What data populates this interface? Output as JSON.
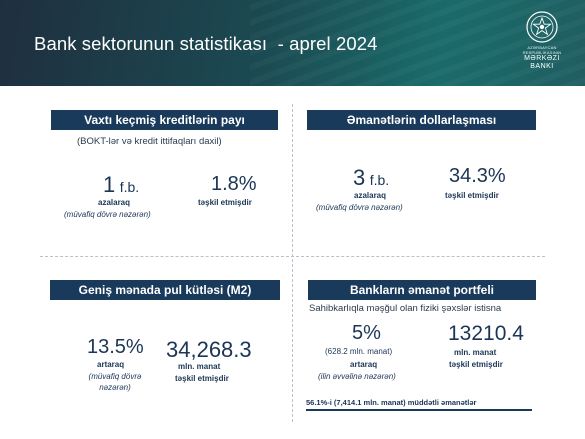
{
  "header": {
    "title": "Bank sektorunun statistikası  - aprel 2024",
    "logo": {
      "line1": "AZƏRBAYCAN RESPUBLİKASININ",
      "line2": "MƏRKƏZİ",
      "line3": "BANKI"
    }
  },
  "overdue_loans": {
    "title": "Vaxtı keçmiş kreditlərin payı",
    "subtitle": "(BOKT-lər və kredit ittifaqları daxil)",
    "change_value": "1",
    "change_unit": "f.b.",
    "change_label": "azalaraq",
    "change_note": "(müvafiq dövrə nəzərən)",
    "level_value": "1.8%",
    "level_label": "təşkil etmişdir"
  },
  "dollarization": {
    "title": "Əmanətlərin dollarlaşması",
    "change_value": "3",
    "change_unit": "f.b.",
    "change_label": "azalaraq",
    "change_note": "(müvafiq dövrə nəzərən)",
    "level_value": "34.3%",
    "level_label": "təşkil etmişdir"
  },
  "m2": {
    "title": "Geniş mənada pul kütləsi (M2)",
    "change_value": "13.5%",
    "change_label": "artaraq",
    "change_note_1": "(müvafiq dövrə",
    "change_note_2": "nəzərən)",
    "level_value": "34,268.3",
    "level_unit": "mln. manat",
    "level_label": "təşkil etmişdir"
  },
  "deposit_portfolio": {
    "title": "Bankların əmanət portfeli",
    "subtitle": "Sahibkarlıqla məşğul olan fiziki şəxslər istisna",
    "change_value": "5%",
    "change_amount": "(628.2 mln. manat)",
    "change_label": "artaraq",
    "change_note": "(ilin əvvəlinə nəzərən)",
    "level_value": "13210.4",
    "level_unit": "mln. manat",
    "level_label": "təşkil etmişdir",
    "footnote": "56.1%-i (7,414.1 mln. manat) müddətli əmanətlər"
  }
}
